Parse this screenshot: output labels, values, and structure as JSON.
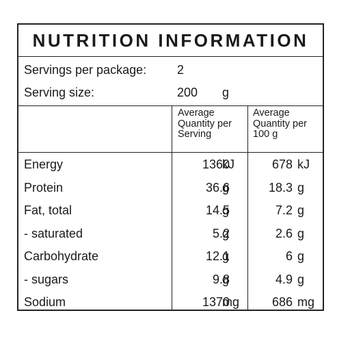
{
  "title": "NUTRITION INFORMATION",
  "servings_per_package": {
    "label": "Servings per package:",
    "value": "2"
  },
  "serving_size": {
    "label": "Serving size:",
    "value": "200",
    "unit": "g"
  },
  "column_headers": {
    "per_serving": "Average\nQuantity per\nServing",
    "per_100g": "Average\nQuantity per\n100 g"
  },
  "rows": [
    {
      "nutrient": "Energy",
      "serving_value": "1360",
      "serving_unit": "kJ",
      "per100_value": "678",
      "per100_unit": "kJ"
    },
    {
      "nutrient": "Protein",
      "serving_value": "36.6",
      "serving_unit": "g",
      "per100_value": "18.3",
      "per100_unit": "g"
    },
    {
      "nutrient": "Fat, total",
      "serving_value": "14.5",
      "serving_unit": "g",
      "per100_value": "7.2",
      "per100_unit": "g"
    },
    {
      "nutrient": "- saturated",
      "serving_value": "5.2",
      "serving_unit": "g",
      "per100_value": "2.6",
      "per100_unit": "g"
    },
    {
      "nutrient": "Carbohydrate",
      "serving_value": "12.1",
      "serving_unit": "g",
      "per100_value": "6",
      "per100_unit": "g"
    },
    {
      "nutrient": "- sugars",
      "serving_value": "9.8",
      "serving_unit": "g",
      "per100_value": "4.9",
      "per100_unit": "g"
    },
    {
      "nutrient": "Sodium",
      "serving_value": "1370",
      "serving_unit": "mg",
      "per100_value": "686",
      "per100_unit": "mg"
    }
  ]
}
